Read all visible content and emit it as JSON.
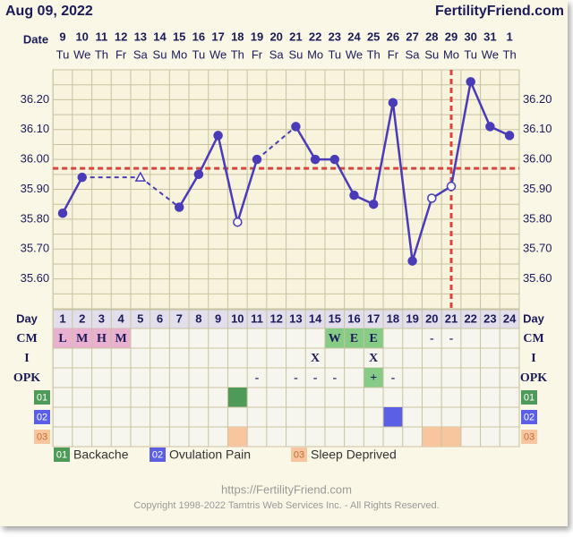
{
  "header": {
    "date": "Aug 09, 2022",
    "site": "FertilityFriend.com"
  },
  "chart_data": {
    "type": "line",
    "date_label": "Date",
    "dates": [
      9,
      10,
      11,
      12,
      13,
      14,
      15,
      16,
      17,
      18,
      19,
      20,
      21,
      22,
      23,
      24,
      25,
      26,
      27,
      28,
      29,
      30,
      31,
      1
    ],
    "weekdays": [
      "Tu",
      "We",
      "Th",
      "Fr",
      "Sa",
      "Su",
      "Mo",
      "Tu",
      "We",
      "Th",
      "Fr",
      "Sa",
      "Su",
      "Mo",
      "Tu",
      "We",
      "Th",
      "Fr",
      "Sa",
      "Su",
      "Mo",
      "Tu",
      "We",
      "Th"
    ],
    "day_label": "Day",
    "days": [
      1,
      2,
      3,
      4,
      5,
      6,
      7,
      8,
      9,
      10,
      11,
      12,
      13,
      14,
      15,
      16,
      17,
      18,
      19,
      20,
      21,
      22,
      23,
      24
    ],
    "values": [
      35.82,
      35.94,
      null,
      null,
      35.94,
      null,
      35.84,
      35.95,
      36.08,
      35.79,
      36.0,
      null,
      36.11,
      36.0,
      36.0,
      35.88,
      35.85,
      36.19,
      35.66,
      35.87,
      35.91,
      36.26,
      36.11,
      36.08
    ],
    "point_styles": [
      "filled",
      "filled",
      null,
      null,
      "triangle",
      null,
      "filled",
      "filled",
      "filled",
      "open",
      "filled",
      null,
      "filled",
      "filled",
      "filled",
      "filled",
      "filled",
      "filled",
      "filled",
      "open",
      "open",
      "filled",
      "filled",
      "filled"
    ],
    "color": "#4a3bb8",
    "ylim": [
      35.5,
      36.3
    ],
    "yticks": [
      {
        "value": 35.6,
        "label": "35.60"
      },
      {
        "value": 35.7,
        "label": "35.70"
      },
      {
        "value": 35.8,
        "label": "35.80"
      },
      {
        "value": 35.9,
        "label": "35.90"
      },
      {
        "value": 36.0,
        "label": "36.00"
      },
      {
        "value": 36.1,
        "label": "36.10"
      },
      {
        "value": 36.2,
        "label": "36.20"
      }
    ],
    "minor_yticks": [
      35.55,
      35.65,
      35.75,
      35.85,
      35.95,
      36.05,
      36.15,
      36.25
    ],
    "grid": true,
    "coverline": 35.97,
    "ovulation_day": 21,
    "marker_line_color": "#d9453b",
    "rows": [
      {
        "label": "CM",
        "cells": [
          {
            "text": "L",
            "color": "#eab0cf"
          },
          {
            "text": "M",
            "color": "#eab0cf"
          },
          {
            "text": "H",
            "color": "#eab0cf"
          },
          {
            "text": "M",
            "color": "#eab0cf"
          },
          null,
          null,
          null,
          null,
          null,
          null,
          null,
          null,
          null,
          null,
          {
            "text": "W",
            "color": "#86cc86"
          },
          {
            "text": "E",
            "color": "#86cc86"
          },
          {
            "text": "E",
            "color": "#86cc86"
          },
          null,
          null,
          {
            "text": "-"
          },
          {
            "text": "-"
          },
          null,
          null,
          null
        ]
      },
      {
        "label": "I",
        "cells": [
          null,
          null,
          null,
          null,
          null,
          null,
          null,
          null,
          null,
          null,
          null,
          null,
          null,
          {
            "text": "X"
          },
          null,
          null,
          {
            "text": "X"
          },
          null,
          null,
          null,
          null,
          null,
          null,
          null
        ]
      },
      {
        "label": "OPK",
        "cells": [
          null,
          null,
          null,
          null,
          null,
          null,
          null,
          null,
          null,
          null,
          {
            "text": "-"
          },
          null,
          {
            "text": "-"
          },
          {
            "text": "-"
          },
          {
            "text": "-"
          },
          null,
          {
            "text": "+",
            "color": "#86cc86"
          },
          {
            "text": "-"
          },
          null,
          null,
          null,
          null,
          null,
          null
        ]
      }
    ],
    "symptoms": [
      {
        "code": "01",
        "name": "Backache",
        "color": "#4e9a59",
        "text_color": "#ffffff",
        "days": [
          10
        ]
      },
      {
        "code": "02",
        "name": "Ovulation Pain",
        "color": "#5a5fe6",
        "text_color": "#ffffff",
        "days": [
          18
        ]
      },
      {
        "code": "03",
        "name": "Sleep Deprived",
        "color": "#f7c69e",
        "text_color": "#c0703a",
        "days": [
          10,
          20,
          21
        ]
      }
    ]
  },
  "footer": {
    "url": "https://FertilityFriend.com",
    "copyright": "Copyright 1998-2022 Tamtris Web Services Inc. - All Rights Reserved."
  }
}
